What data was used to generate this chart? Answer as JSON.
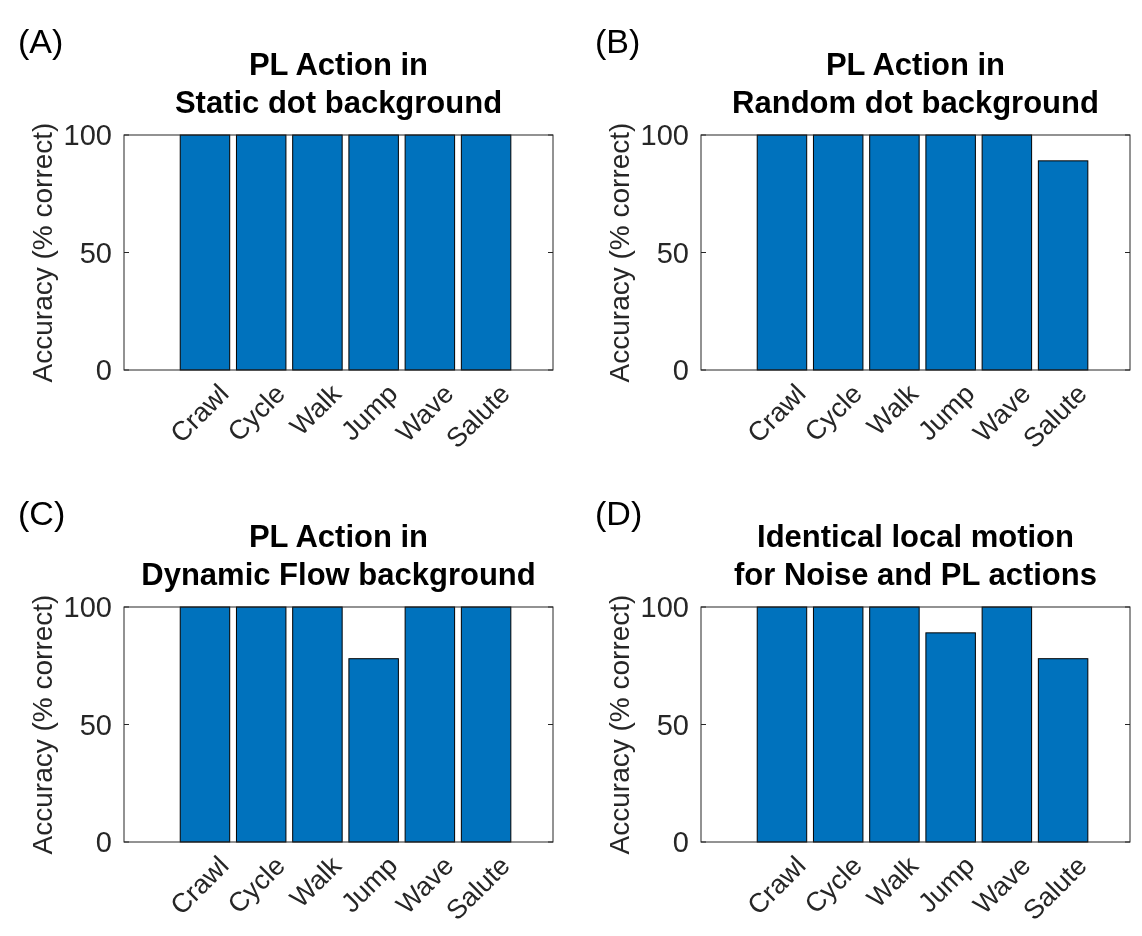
{
  "chart_data": [
    {
      "type": "bar",
      "title": "PL Action in\nStatic dot background",
      "ylabel": "Accuracy (% correct)",
      "annotations": [
        "(A)"
      ],
      "categories": [
        "Crawl",
        "Cycle",
        "Walk",
        "Jump",
        "Wave",
        "Salute"
      ],
      "values": [
        100,
        100,
        100,
        100,
        100,
        100
      ],
      "color": "#0072bd",
      "ylim": [
        0,
        100
      ],
      "yticks": [
        0,
        50,
        100
      ]
    },
    {
      "type": "bar",
      "title": "PL Action in\nRandom dot background",
      "ylabel": "Accuracy (% correct)",
      "annotations": [
        "(B)"
      ],
      "categories": [
        "Crawl",
        "Cycle",
        "Walk",
        "Jump",
        "Wave",
        "Salute"
      ],
      "values": [
        100,
        100,
        100,
        100,
        100,
        89
      ],
      "color": "#0072bd",
      "ylim": [
        0,
        100
      ],
      "yticks": [
        0,
        50,
        100
      ]
    },
    {
      "type": "bar",
      "title": "PL Action in\nDynamic Flow background",
      "ylabel": "Accuracy (% correct)",
      "annotations": [
        "(C)"
      ],
      "categories": [
        "Crawl",
        "Cycle",
        "Walk",
        "Jump",
        "Wave",
        "Salute"
      ],
      "values": [
        100,
        100,
        100,
        78,
        100,
        100
      ],
      "color": "#0072bd",
      "ylim": [
        0,
        100
      ],
      "yticks": [
        0,
        50,
        100
      ]
    },
    {
      "type": "bar",
      "title": "Identical local motion\nfor Noise and PL actions",
      "ylabel": "Accuracy (% correct)",
      "annotations": [
        "(D)"
      ],
      "categories": [
        "Crawl",
        "Cycle",
        "Walk",
        "Jump",
        "Wave",
        "Salute"
      ],
      "values": [
        100,
        100,
        100,
        89,
        100,
        78
      ],
      "color": "#0072bd",
      "ylim": [
        0,
        100
      ],
      "yticks": [
        0,
        50,
        100
      ]
    }
  ]
}
